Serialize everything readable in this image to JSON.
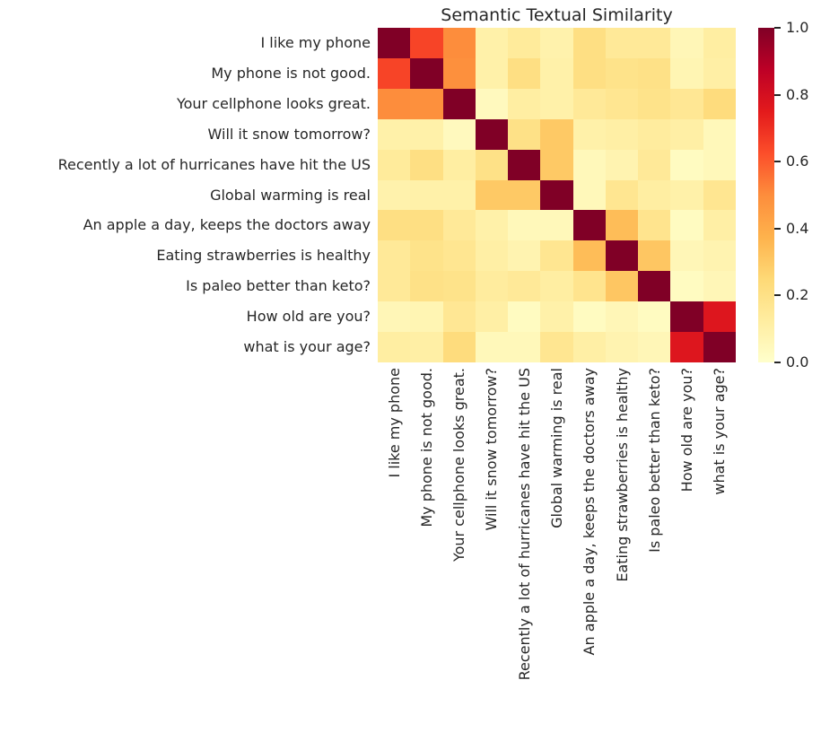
{
  "title": "Semantic Textual Similarity",
  "text_color": "#262626",
  "chart_data": {
    "type": "heatmap",
    "labels": [
      "I like my phone",
      "My phone is not good.",
      "Your cellphone looks great.",
      "Will it snow tomorrow?",
      "Recently a lot of hurricanes have hit the US",
      "Global warming is real",
      "An apple a day, keeps the doctors away",
      "Eating strawberries is healthy",
      "Is paleo better than keto?",
      "How old are you?",
      "what is your age?"
    ],
    "matrix": [
      [
        1.0,
        0.65,
        0.5,
        0.1,
        0.14,
        0.09,
        0.21,
        0.15,
        0.15,
        0.06,
        0.12
      ],
      [
        0.65,
        1.0,
        0.49,
        0.1,
        0.21,
        0.1,
        0.21,
        0.19,
        0.2,
        0.07,
        0.11
      ],
      [
        0.5,
        0.49,
        1.0,
        0.04,
        0.12,
        0.1,
        0.15,
        0.17,
        0.19,
        0.16,
        0.23
      ],
      [
        0.1,
        0.1,
        0.04,
        1.0,
        0.2,
        0.3,
        0.1,
        0.11,
        0.13,
        0.11,
        0.05
      ],
      [
        0.14,
        0.21,
        0.12,
        0.2,
        1.0,
        0.3,
        0.05,
        0.08,
        0.15,
        0.03,
        0.05
      ],
      [
        0.09,
        0.1,
        0.1,
        0.3,
        0.3,
        1.0,
        0.05,
        0.17,
        0.12,
        0.1,
        0.17
      ],
      [
        0.21,
        0.21,
        0.15,
        0.1,
        0.05,
        0.05,
        1.0,
        0.34,
        0.18,
        0.03,
        0.11
      ],
      [
        0.15,
        0.19,
        0.17,
        0.11,
        0.08,
        0.17,
        0.34,
        1.0,
        0.31,
        0.06,
        0.08
      ],
      [
        0.15,
        0.2,
        0.19,
        0.13,
        0.15,
        0.12,
        0.18,
        0.31,
        1.0,
        0.03,
        0.06
      ],
      [
        0.06,
        0.07,
        0.16,
        0.11,
        0.03,
        0.1,
        0.03,
        0.06,
        0.03,
        1.0,
        0.77
      ],
      [
        0.12,
        0.11,
        0.23,
        0.05,
        0.05,
        0.17,
        0.11,
        0.08,
        0.06,
        0.77,
        1.0
      ]
    ],
    "value_range": [
      0.0,
      1.0
    ],
    "colormap": {
      "name": "YlOrRd",
      "anchors": [
        "#ffffcc",
        "#ffeda0",
        "#fed976",
        "#feb24c",
        "#fd8d3c",
        "#fc4e2a",
        "#e31a1c",
        "#bd0026",
        "#800026"
      ]
    },
    "colorbar": {
      "position": "right",
      "ticks": [
        "1.0",
        "0.8",
        "0.6",
        "0.4",
        "0.2",
        "0.0"
      ]
    },
    "grid": false,
    "legend": "none"
  }
}
